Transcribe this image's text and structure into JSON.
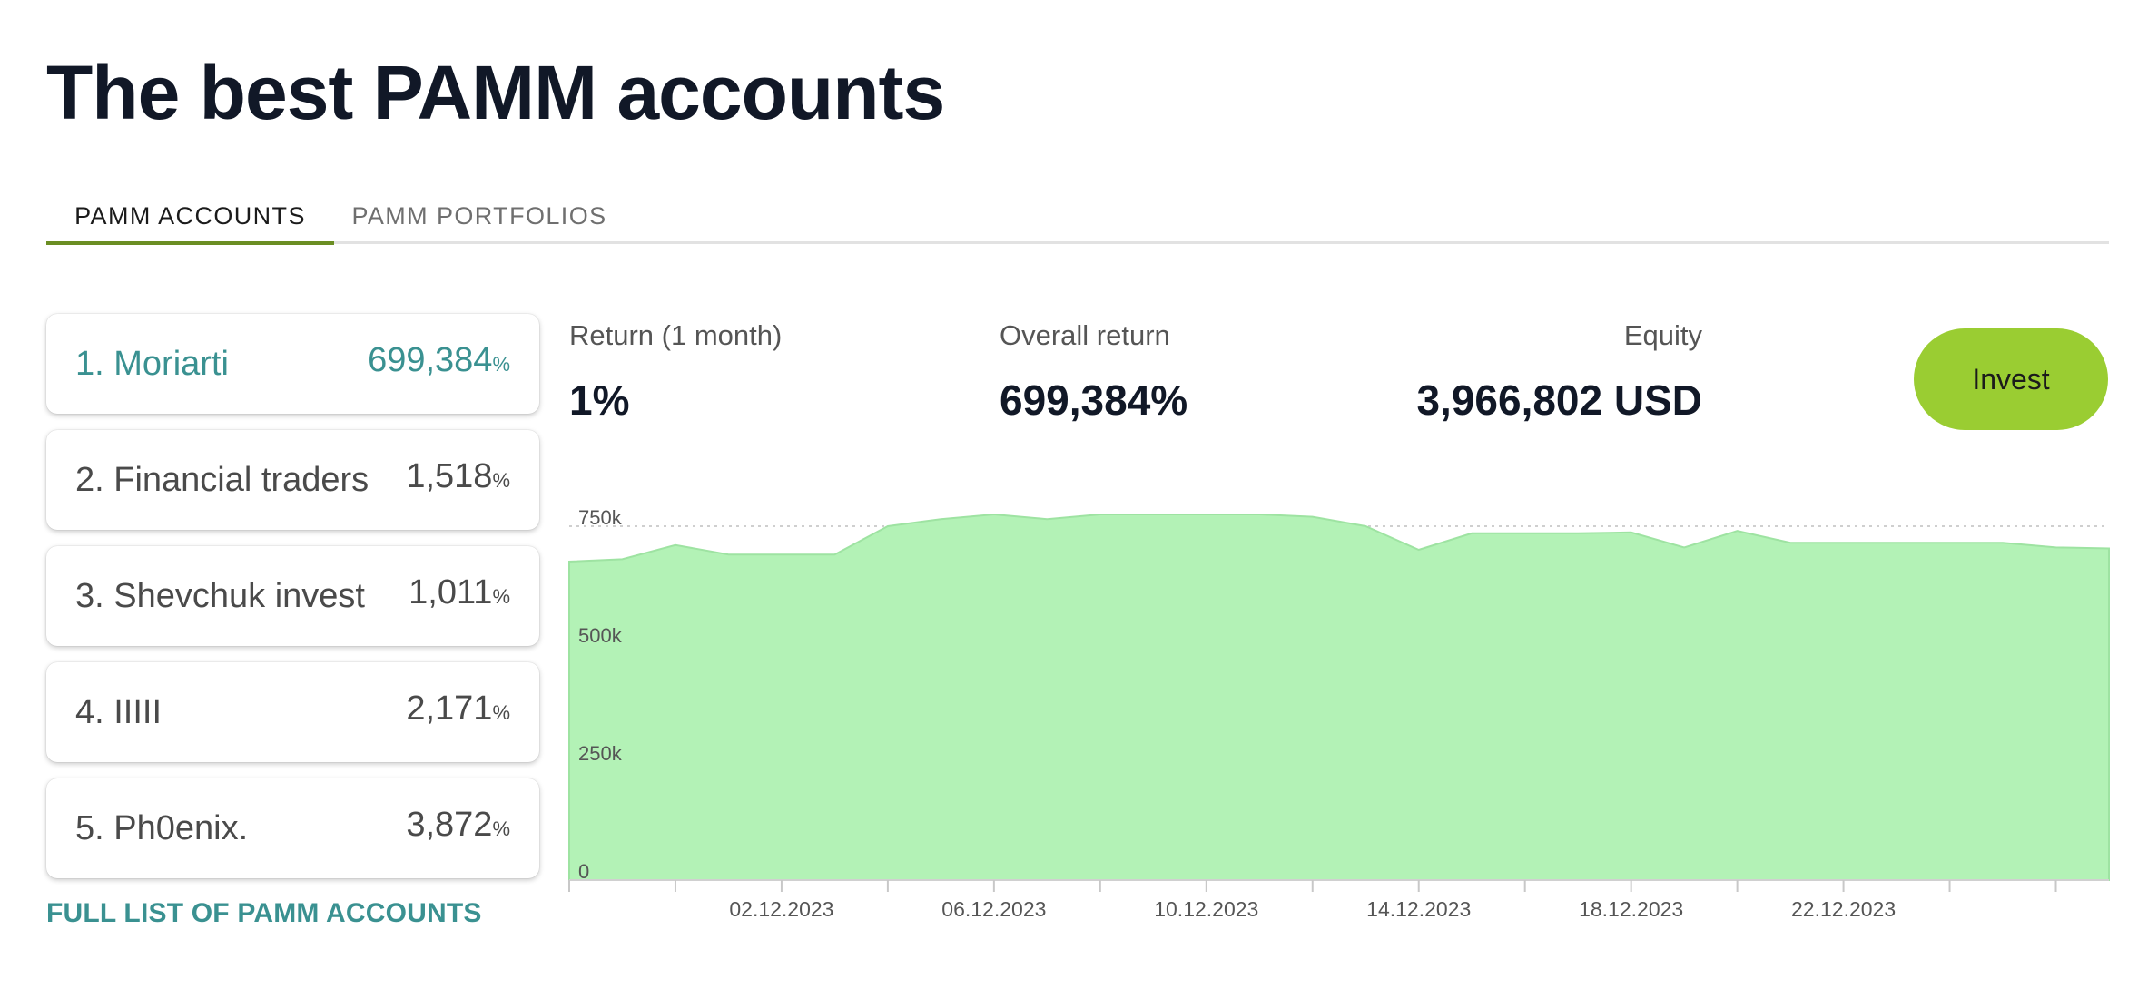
{
  "title": "The best PAMM accounts",
  "tabs": [
    {
      "label": "PAMM ACCOUNTS",
      "active": true
    },
    {
      "label": "PAMM PORTFOLIOS",
      "active": false
    }
  ],
  "accounts": [
    {
      "name": "1. Moriarti",
      "return": "699,384",
      "unit": "%"
    },
    {
      "name": "2. Financial traders",
      "return": "1,518",
      "unit": "%"
    },
    {
      "name": "3. Shevchuk invest",
      "return": "1,011",
      "unit": "%"
    },
    {
      "name": "4. IIIII",
      "return": "2,171",
      "unit": "%"
    },
    {
      "name": "5. Ph0enix.",
      "return": "3,872",
      "unit": "%"
    }
  ],
  "full_list_label": "FULL LIST OF PAMM ACCOUNTS",
  "stats": {
    "return_1m_label": "Return (1 month)",
    "return_1m_value": "1%",
    "overall_label": "Overall return",
    "overall_value": "699,384%",
    "equity_label": "Equity",
    "equity_value": "3,966,802 USD"
  },
  "invest_label": "Invest",
  "colors": {
    "accent_teal": "#3a9191",
    "invest_green": "#9acd32",
    "chart_fill": "#b3f2b6",
    "tab_underline": "#6b8e23"
  },
  "chart_data": {
    "type": "area",
    "ylim": [
      0,
      750000
    ],
    "yticks": [
      {
        "value": 0,
        "label": "0"
      },
      {
        "value": 250000,
        "label": "250k"
      },
      {
        "value": 500000,
        "label": "500k"
      },
      {
        "value": 750000,
        "label": "750k"
      }
    ],
    "xrange": [
      "2023-11-28",
      "2023-12-27"
    ],
    "xticks": [
      "02.12.2023",
      "06.12.2023",
      "10.12.2023",
      "14.12.2023",
      "18.12.2023",
      "22.12.2023"
    ],
    "x": [
      "2023-11-28",
      "2023-11-29",
      "2023-11-30",
      "2023-12-01",
      "2023-12-02",
      "2023-12-03",
      "2023-12-04",
      "2023-12-05",
      "2023-12-06",
      "2023-12-07",
      "2023-12-08",
      "2023-12-09",
      "2023-12-10",
      "2023-12-11",
      "2023-12-12",
      "2023-12-13",
      "2023-12-14",
      "2023-12-15",
      "2023-12-16",
      "2023-12-17",
      "2023-12-18",
      "2023-12-19",
      "2023-12-20",
      "2023-12-21",
      "2023-12-22",
      "2023-12-23",
      "2023-12-24",
      "2023-12-25",
      "2023-12-26",
      "2023-12-27"
    ],
    "series": [
      {
        "values": [
          675000,
          680000,
          710000,
          690000,
          690000,
          690000,
          750000,
          765000,
          775000,
          765000,
          775000,
          775000,
          775000,
          775000,
          770000,
          750000,
          700000,
          735000,
          735000,
          735000,
          737000,
          705000,
          740000,
          715000,
          715000,
          715000,
          715000,
          715000,
          705000,
          703000
        ]
      }
    ]
  }
}
